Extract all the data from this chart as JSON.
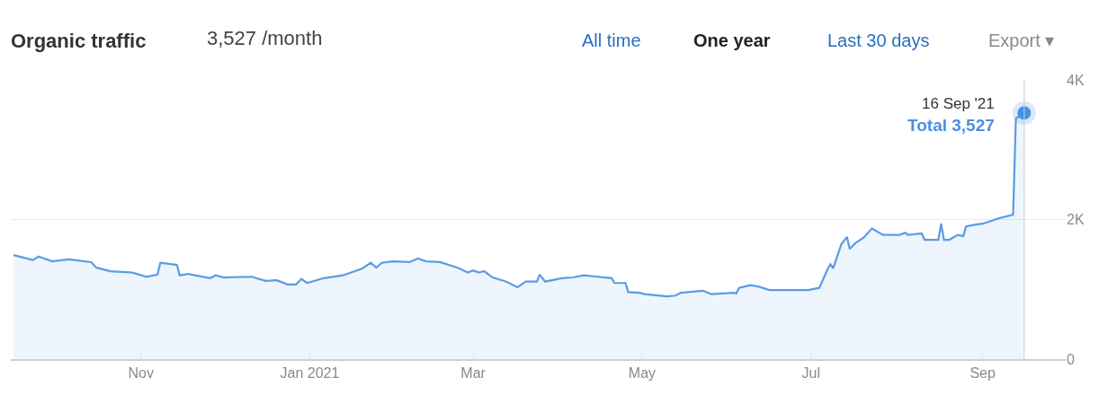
{
  "chart_data": {
    "type": "area",
    "title": "Organic traffic",
    "subtitle": "3,527 /month",
    "x": [
      "2020-09-16",
      "2020-09-23",
      "2020-09-25",
      "2020-09-30",
      "2020-10-06",
      "2020-10-14",
      "2020-10-16",
      "2020-10-21",
      "2020-10-29",
      "2020-11-03",
      "2020-11-07",
      "2020-11-08",
      "2020-11-14",
      "2020-11-15",
      "2020-11-18",
      "2020-11-26",
      "2020-11-28",
      "2020-12-01",
      "2020-12-11",
      "2020-12-16",
      "2020-12-20",
      "2020-12-24",
      "2020-12-27",
      "2020-12-29",
      "2020-12-31",
      "2021-01-06",
      "2021-01-13",
      "2021-01-20",
      "2021-01-23",
      "2021-01-25",
      "2021-01-27",
      "2021-01-31",
      "2021-02-06",
      "2021-02-09",
      "2021-02-12",
      "2021-02-17",
      "2021-02-24",
      "2021-02-27",
      "2021-03-01",
      "2021-03-03",
      "2021-03-05",
      "2021-03-08",
      "2021-03-13",
      "2021-03-17",
      "2021-03-20",
      "2021-03-24",
      "2021-03-25",
      "2021-03-27",
      "2021-04-02",
      "2021-04-06",
      "2021-04-10",
      "2021-04-15",
      "2021-04-20",
      "2021-04-21",
      "2021-04-25",
      "2021-04-26",
      "2021-04-30",
      "2021-05-02",
      "2021-05-10",
      "2021-05-13",
      "2021-05-15",
      "2021-05-23",
      "2021-05-26",
      "2021-06-03",
      "2021-06-04",
      "2021-06-05",
      "2021-06-09",
      "2021-06-12",
      "2021-06-16",
      "2021-06-30",
      "2021-07-04",
      "2021-07-07",
      "2021-07-08",
      "2021-07-09",
      "2021-07-12",
      "2021-07-14",
      "2021-07-15",
      "2021-07-17",
      "2021-07-20",
      "2021-07-23",
      "2021-07-27",
      "2021-08-02",
      "2021-08-04",
      "2021-08-05",
      "2021-08-10",
      "2021-08-11",
      "2021-08-16",
      "2021-08-17",
      "2021-08-18",
      "2021-08-20",
      "2021-08-23",
      "2021-08-25",
      "2021-08-26",
      "2021-08-30",
      "2021-09-01",
      "2021-09-07",
      "2021-09-12",
      "2021-09-13",
      "2021-09-16"
    ],
    "series": [
      {
        "color": "#5b9be6",
        "values": [
          1490,
          1420,
          1470,
          1400,
          1430,
          1390,
          1310,
          1260,
          1240,
          1180,
          1210,
          1380,
          1350,
          1200,
          1220,
          1160,
          1200,
          1170,
          1180,
          1120,
          1130,
          1070,
          1070,
          1150,
          1090,
          1160,
          1200,
          1300,
          1380,
          1310,
          1380,
          1400,
          1390,
          1440,
          1400,
          1390,
          1300,
          1240,
          1270,
          1240,
          1260,
          1170,
          1110,
          1030,
          1110,
          1110,
          1210,
          1110,
          1160,
          1170,
          1200,
          1180,
          1160,
          1090,
          1090,
          960,
          950,
          930,
          900,
          910,
          950,
          980,
          930,
          950,
          940,
          1020,
          1060,
          1040,
          990,
          990,
          1020,
          1290,
          1360,
          1300,
          1650,
          1750,
          1580,
          1660,
          1740,
          1870,
          1780,
          1780,
          1810,
          1780,
          1800,
          1710,
          1710,
          1940,
          1710,
          1710,
          1780,
          1760,
          1900,
          1930,
          1940,
          2020,
          2070,
          3450,
          3527
        ]
      }
    ],
    "xlim": [
      "2020-09-15",
      "2021-10-01"
    ],
    "xticks": [
      {
        "value": "2020-11-01",
        "label": "Nov"
      },
      {
        "value": "2021-01-01",
        "label": "Jan 2021"
      },
      {
        "value": "2021-03-01",
        "label": "Mar"
      },
      {
        "value": "2021-05-01",
        "label": "May"
      },
      {
        "value": "2021-07-01",
        "label": "Jul"
      },
      {
        "value": "2021-09-01",
        "label": "Sep"
      }
    ],
    "ylim": [
      0,
      4000
    ],
    "yticks": [
      0,
      {
        "value": 2000,
        "label": "2K"
      },
      {
        "value": 4000,
        "label": "4K"
      }
    ],
    "grid": "y",
    "marker": "none",
    "line_style": "solid",
    "ref_lines": [
      {
        "axis": "x",
        "value": "2021-09-16",
        "color": "#c8ccd4"
      }
    ],
    "annotations": [
      {
        "text": "16 Sep '21",
        "x": "2021-09-16",
        "y": 3527
      },
      {
        "text": "Total 3,527",
        "x": "2021-09-16",
        "y": 3527
      },
      "All time",
      "One year",
      "Last 30 days",
      "Export ▾"
    ]
  }
}
